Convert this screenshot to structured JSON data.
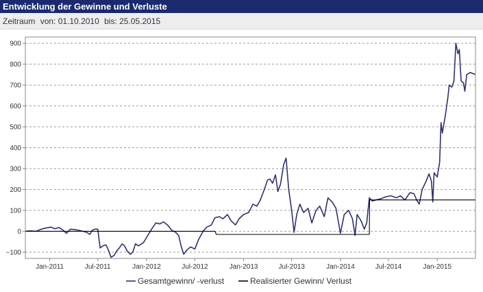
{
  "header": {
    "title": "Entwicklung der Gewinne und Verluste"
  },
  "range": {
    "label": "Zeitraum",
    "from": "von: 01.10.2010",
    "to": "bis: 25.05.2015"
  },
  "chart_data": {
    "type": "line",
    "title": "",
    "xlabel": "",
    "ylabel": "",
    "ylim": [
      -130,
      930
    ],
    "yticks": [
      -100,
      0,
      100,
      200,
      300,
      400,
      500,
      600,
      700,
      800,
      900
    ],
    "xlim": [
      "2010-10-01",
      "2015-05-25"
    ],
    "xticks": [
      {
        "date": "2011-01-01",
        "label": "Jan-2011"
      },
      {
        "date": "2011-07-01",
        "label": "Jul-2011"
      },
      {
        "date": "2012-01-01",
        "label": "Jan-2012"
      },
      {
        "date": "2012-07-01",
        "label": "Jul-2012"
      },
      {
        "date": "2013-01-01",
        "label": "Jan-2013"
      },
      {
        "date": "2013-07-01",
        "label": "Jul-2013"
      },
      {
        "date": "2014-01-01",
        "label": "Jan-2014"
      },
      {
        "date": "2014-07-01",
        "label": "Jul-2014"
      },
      {
        "date": "2015-01-01",
        "label": "Jan-2015"
      }
    ],
    "grid": true,
    "legend_position": "bottom",
    "series": [
      {
        "name": "Gesamtgewinn/ -verlust",
        "color": "#2b3170",
        "points": [
          [
            "2010-10-01",
            0
          ],
          [
            "2010-10-20",
            2
          ],
          [
            "2010-11-10",
            0
          ],
          [
            "2010-11-20",
            5
          ],
          [
            "2010-12-01",
            10
          ],
          [
            "2010-12-15",
            15
          ],
          [
            "2011-01-05",
            20
          ],
          [
            "2011-01-20",
            12
          ],
          [
            "2011-02-05",
            18
          ],
          [
            "2011-02-20",
            5
          ],
          [
            "2011-03-05",
            -10
          ],
          [
            "2011-03-20",
            10
          ],
          [
            "2011-04-05",
            8
          ],
          [
            "2011-04-20",
            5
          ],
          [
            "2011-05-05",
            0
          ],
          [
            "2011-05-20",
            -5
          ],
          [
            "2011-06-01",
            -15
          ],
          [
            "2011-06-10",
            5
          ],
          [
            "2011-06-20",
            10
          ],
          [
            "2011-07-01",
            10
          ],
          [
            "2011-07-10",
            -80
          ],
          [
            "2011-07-20",
            -70
          ],
          [
            "2011-08-01",
            -65
          ],
          [
            "2011-08-10",
            -90
          ],
          [
            "2011-08-20",
            -125
          ],
          [
            "2011-09-01",
            -115
          ],
          [
            "2011-09-10",
            -95
          ],
          [
            "2011-09-20",
            -80
          ],
          [
            "2011-10-01",
            -60
          ],
          [
            "2011-10-10",
            -70
          ],
          [
            "2011-10-20",
            -95
          ],
          [
            "2011-11-01",
            -110
          ],
          [
            "2011-11-10",
            -100
          ],
          [
            "2011-11-20",
            -60
          ],
          [
            "2011-12-01",
            -70
          ],
          [
            "2011-12-20",
            -55
          ],
          [
            "2012-01-01",
            -30
          ],
          [
            "2012-01-20",
            10
          ],
          [
            "2012-02-05",
            40
          ],
          [
            "2012-02-20",
            35
          ],
          [
            "2012-03-05",
            45
          ],
          [
            "2012-03-20",
            30
          ],
          [
            "2012-04-05",
            5
          ],
          [
            "2012-04-20",
            -5
          ],
          [
            "2012-05-01",
            -20
          ],
          [
            "2012-05-10",
            -70
          ],
          [
            "2012-05-20",
            -110
          ],
          [
            "2012-06-01",
            -90
          ],
          [
            "2012-06-15",
            -75
          ],
          [
            "2012-07-01",
            -85
          ],
          [
            "2012-07-15",
            -40
          ],
          [
            "2012-08-01",
            0
          ],
          [
            "2012-08-15",
            20
          ],
          [
            "2012-09-01",
            30
          ],
          [
            "2012-09-15",
            65
          ],
          [
            "2012-10-01",
            70
          ],
          [
            "2012-10-15",
            60
          ],
          [
            "2012-11-01",
            80
          ],
          [
            "2012-11-15",
            50
          ],
          [
            "2012-12-01",
            30
          ],
          [
            "2012-12-15",
            60
          ],
          [
            "2013-01-01",
            80
          ],
          [
            "2013-01-20",
            90
          ],
          [
            "2013-02-05",
            130
          ],
          [
            "2013-02-20",
            120
          ],
          [
            "2013-03-05",
            150
          ],
          [
            "2013-03-20",
            200
          ],
          [
            "2013-04-01",
            245
          ],
          [
            "2013-04-10",
            250
          ],
          [
            "2013-04-20",
            230
          ],
          [
            "2013-05-01",
            270
          ],
          [
            "2013-05-10",
            190
          ],
          [
            "2013-05-20",
            225
          ],
          [
            "2013-06-01",
            320
          ],
          [
            "2013-06-10",
            350
          ],
          [
            "2013-06-20",
            200
          ],
          [
            "2013-07-01",
            100
          ],
          [
            "2013-07-10",
            -5
          ],
          [
            "2013-07-20",
            80
          ],
          [
            "2013-08-01",
            130
          ],
          [
            "2013-08-15",
            90
          ],
          [
            "2013-09-01",
            110
          ],
          [
            "2013-09-15",
            40
          ],
          [
            "2013-10-01",
            100
          ],
          [
            "2013-10-15",
            120
          ],
          [
            "2013-11-01",
            70
          ],
          [
            "2013-11-15",
            160
          ],
          [
            "2013-12-01",
            140
          ],
          [
            "2013-12-15",
            110
          ],
          [
            "2014-01-01",
            -10
          ],
          [
            "2014-01-15",
            80
          ],
          [
            "2014-02-01",
            100
          ],
          [
            "2014-02-15",
            60
          ],
          [
            "2014-02-25",
            -20
          ],
          [
            "2014-03-05",
            80
          ],
          [
            "2014-03-20",
            50
          ],
          [
            "2014-04-01",
            10
          ],
          [
            "2014-04-10",
            40
          ],
          [
            "2014-04-20",
            160
          ],
          [
            "2014-05-01",
            145
          ],
          [
            "2014-05-15",
            150
          ],
          [
            "2014-06-01",
            155
          ],
          [
            "2014-06-20",
            165
          ],
          [
            "2014-07-10",
            170
          ],
          [
            "2014-08-01",
            160
          ],
          [
            "2014-08-15",
            170
          ],
          [
            "2014-09-01",
            150
          ],
          [
            "2014-09-20",
            185
          ],
          [
            "2014-10-05",
            180
          ],
          [
            "2014-10-15",
            150
          ],
          [
            "2014-10-25",
            130
          ],
          [
            "2014-11-05",
            200
          ],
          [
            "2014-11-20",
            240
          ],
          [
            "2014-12-01",
            275
          ],
          [
            "2014-12-10",
            240
          ],
          [
            "2014-12-15",
            140
          ],
          [
            "2014-12-20",
            280
          ],
          [
            "2015-01-01",
            260
          ],
          [
            "2015-01-10",
            330
          ],
          [
            "2015-01-15",
            520
          ],
          [
            "2015-01-20",
            470
          ],
          [
            "2015-02-01",
            560
          ],
          [
            "2015-02-10",
            640
          ],
          [
            "2015-02-15",
            700
          ],
          [
            "2015-02-25",
            690
          ],
          [
            "2015-03-05",
            720
          ],
          [
            "2015-03-12",
            900
          ],
          [
            "2015-03-20",
            850
          ],
          [
            "2015-03-25",
            870
          ],
          [
            "2015-04-01",
            720
          ],
          [
            "2015-04-10",
            710
          ],
          [
            "2015-04-15",
            670
          ],
          [
            "2015-04-22",
            750
          ],
          [
            "2015-05-05",
            760
          ],
          [
            "2015-05-25",
            750
          ]
        ]
      },
      {
        "name": "Realisierter Gewinn/ Verlust",
        "color": "#000000",
        "points": [
          [
            "2010-10-01",
            0
          ],
          [
            "2012-09-15",
            0
          ],
          [
            "2012-09-20",
            -15
          ],
          [
            "2014-04-20",
            -15
          ],
          [
            "2014-04-21",
            150
          ],
          [
            "2015-05-25",
            150
          ]
        ]
      }
    ]
  }
}
